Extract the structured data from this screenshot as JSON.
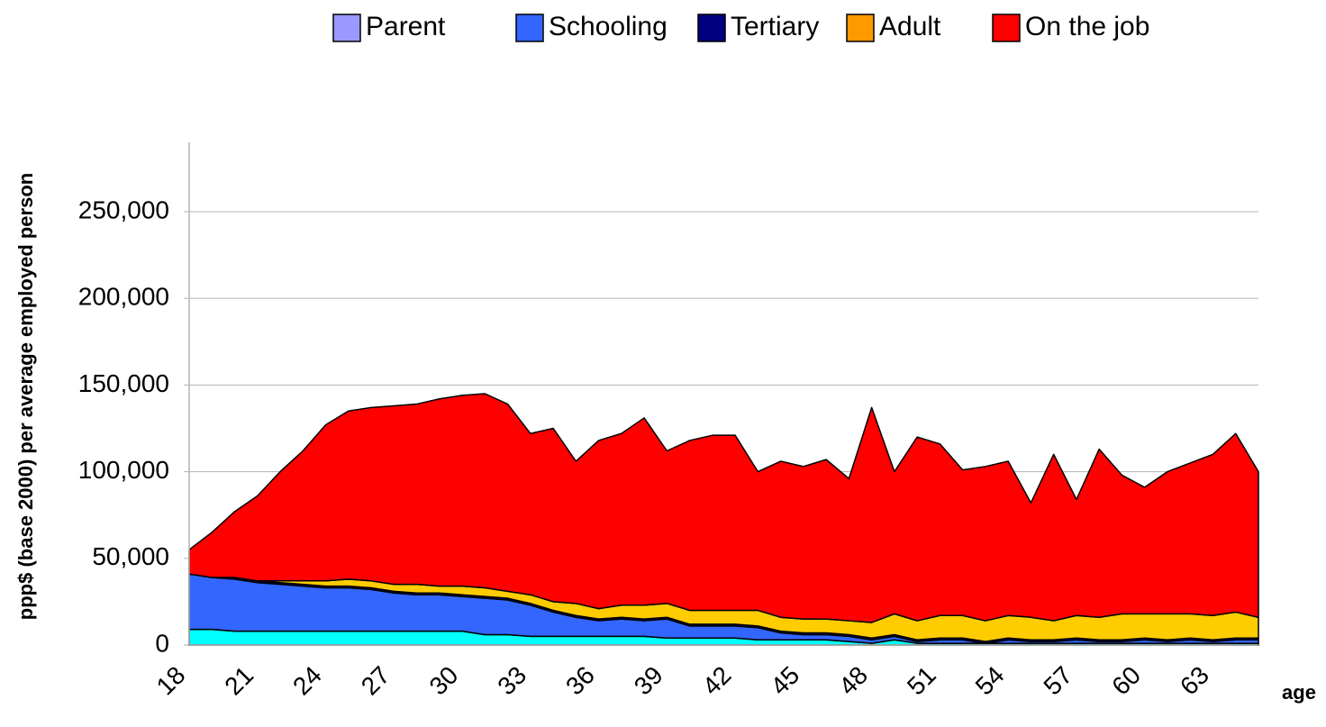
{
  "chart_data": {
    "type": "stacked_area",
    "x_label": "age",
    "y_label": "ppp$ (base 2000) per average employed person",
    "categories": [
      "18",
      null,
      null,
      "21",
      null,
      null,
      "24",
      null,
      null,
      "27",
      null,
      null,
      "30",
      null,
      null,
      "33",
      null,
      null,
      "36",
      null,
      null,
      "39",
      null,
      null,
      "42",
      null,
      null,
      "45",
      null,
      null,
      "48",
      null,
      null,
      "51",
      null,
      null,
      "54",
      null,
      null,
      "57",
      null,
      null,
      "60",
      null,
      null,
      "63",
      null,
      null
    ],
    "series": [
      {
        "name": "Parent",
        "color": "#00ffff",
        "legend_color": "#9999ff",
        "values": [
          9000,
          9000,
          8000,
          8000,
          8000,
          8000,
          8000,
          8000,
          8000,
          8000,
          8000,
          8000,
          8000,
          6000,
          6000,
          5000,
          5000,
          5000,
          5000,
          5000,
          5000,
          4000,
          4000,
          4000,
          4000,
          3000,
          3000,
          3000,
          3000,
          2000,
          1000,
          3000,
          1000,
          1000,
          1000,
          1000,
          1000,
          1000,
          1000,
          1000,
          1000,
          1000,
          1000,
          1000,
          1000,
          1000,
          1000,
          1000
        ]
      },
      {
        "name": "Schooling",
        "color": "#3366ff",
        "legend_color": "#3366ff",
        "values": [
          32000,
          30000,
          30000,
          28000,
          27000,
          26000,
          25000,
          25000,
          24000,
          22000,
          21000,
          21000,
          20000,
          21000,
          20000,
          18000,
          14000,
          11000,
          9000,
          10000,
          9000,
          11000,
          7000,
          7000,
          7000,
          7000,
          4000,
          3000,
          3000,
          3000,
          2000,
          2000,
          1000,
          2000,
          2000,
          0,
          2000,
          1000,
          1000,
          2000,
          1000,
          1000,
          2000,
          1000,
          2000,
          1000,
          2000,
          2000
        ]
      },
      {
        "name": "Tertiary",
        "color": "#000080",
        "legend_color": "#000080",
        "values": [
          0,
          0,
          1000,
          1000,
          1000,
          1000,
          1000,
          1000,
          1000,
          1000,
          1000,
          1000,
          1000,
          1000,
          1000,
          1000,
          1000,
          1000,
          1000,
          1000,
          1000,
          1000,
          1000,
          1000,
          1000,
          1000,
          1000,
          1000,
          1000,
          1000,
          1000,
          1000,
          1000,
          1000,
          1000,
          1000,
          1000,
          1000,
          1000,
          1000,
          1000,
          1000,
          1000,
          1000,
          1000,
          1000,
          1000,
          1000
        ]
      },
      {
        "name": "Adult",
        "color": "#ffcc00",
        "legend_color": "#ff9900",
        "values": [
          0,
          0,
          0,
          0,
          1000,
          2000,
          3000,
          4000,
          4000,
          4000,
          5000,
          4000,
          5000,
          5000,
          4000,
          5000,
          5000,
          7000,
          6000,
          7000,
          8000,
          8000,
          8000,
          8000,
          8000,
          9000,
          8000,
          8000,
          8000,
          8000,
          9000,
          12000,
          11000,
          13000,
          13000,
          12000,
          13000,
          13000,
          11000,
          13000,
          13000,
          15000,
          14000,
          15000,
          14000,
          14000,
          15000,
          12000
        ]
      },
      {
        "name": "On the job",
        "color": "#ff0000",
        "legend_color": "#ff0000",
        "values": [
          14000,
          26000,
          38000,
          49000,
          63000,
          75000,
          90000,
          97000,
          100000,
          103000,
          104000,
          108000,
          110000,
          112000,
          108000,
          93000,
          100000,
          82000,
          97000,
          99000,
          108000,
          88000,
          98000,
          101000,
          101000,
          80000,
          90000,
          88000,
          92000,
          82000,
          124000,
          82000,
          106000,
          99000,
          84000,
          89000,
          89000,
          66000,
          96000,
          67000,
          97000,
          80000,
          73000,
          82000,
          87000,
          93000,
          103000,
          84000
        ]
      }
    ],
    "ylim": [
      0,
      290000
    ],
    "yticks": [
      0,
      {
        "value": 50000,
        "label": "50,000"
      },
      {
        "value": 100000,
        "label": "100,000"
      },
      {
        "value": 150000,
        "label": "150,000"
      },
      {
        "value": 200000,
        "label": "200,000"
      },
      {
        "value": 250000,
        "label": "250,000"
      }
    ],
    "grid": true,
    "legend": "top"
  }
}
